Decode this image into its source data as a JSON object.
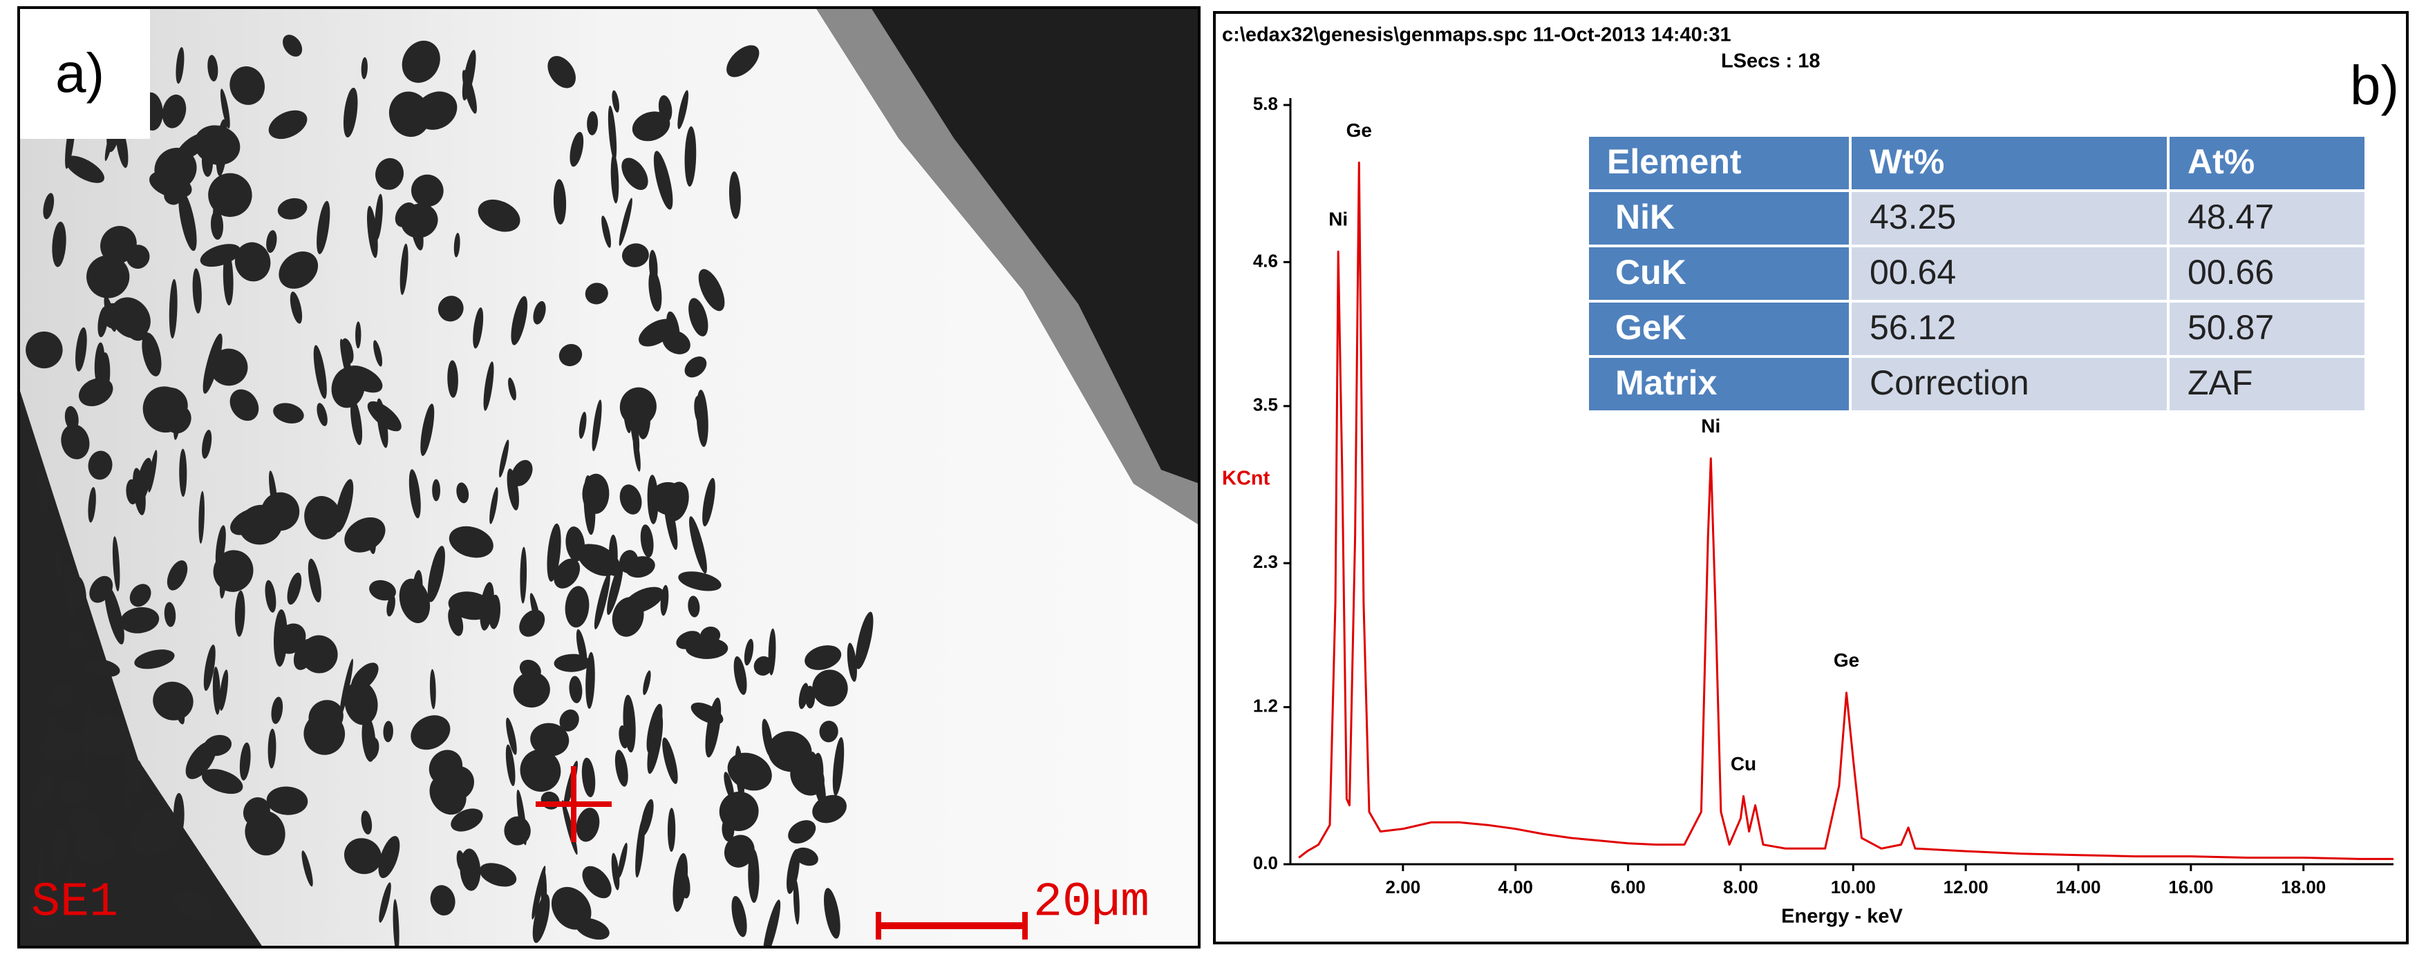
{
  "panel_a": {
    "label": "a)",
    "detector": "SE1",
    "scale_bar": "20µm"
  },
  "chart_data": {
    "type": "line",
    "header": "c:\\edax32\\genesis\\genmaps.spc  11-Oct-2013 14:40:31",
    "subheader": "LSecs : 18",
    "panel_label": "b)",
    "y_label": "KCnt",
    "x_label": "Energy - keV",
    "xlim": [
      0,
      19.6
    ],
    "ylim": [
      0,
      5.8
    ],
    "xticks": [
      {
        "value": 2,
        "label": "2.00"
      },
      {
        "value": 4,
        "label": "4.00"
      },
      {
        "value": 6,
        "label": "6.00"
      },
      {
        "value": 8,
        "label": "8.00"
      },
      {
        "value": 10,
        "label": "10.00"
      },
      {
        "value": 12,
        "label": "12.00"
      },
      {
        "value": 14,
        "label": "14.00"
      },
      {
        "value": 16,
        "label": "16.00"
      },
      {
        "value": 18,
        "label": "18.00"
      }
    ],
    "yticks": [
      {
        "value": 0,
        "label": "0.0"
      },
      1.2,
      2.3,
      3.5,
      4.6,
      5.8
    ],
    "x": [
      0.15,
      0.3,
      0.5,
      0.7,
      0.8,
      0.85,
      0.92,
      1.0,
      1.05,
      1.15,
      1.22,
      1.3,
      1.4,
      1.6,
      2.0,
      2.5,
      3.0,
      3.5,
      4.0,
      4.5,
      5.0,
      5.5,
      6.0,
      6.5,
      7.0,
      7.3,
      7.42,
      7.47,
      7.55,
      7.65,
      7.8,
      8.0,
      8.05,
      8.15,
      8.26,
      8.4,
      8.8,
      9.5,
      9.75,
      9.88,
      10.0,
      10.15,
      10.5,
      10.85,
      10.98,
      11.1,
      12,
      13,
      14,
      15,
      16,
      17,
      18,
      19,
      19.6
    ],
    "series": [
      {
        "name": "Spectrum",
        "color": "#e00000",
        "values": [
          0.05,
          0.1,
          0.15,
          0.3,
          2.0,
          4.68,
          3.0,
          0.5,
          0.45,
          2.5,
          5.36,
          2.0,
          0.4,
          0.25,
          0.27,
          0.32,
          0.32,
          0.3,
          0.27,
          0.23,
          0.2,
          0.18,
          0.16,
          0.15,
          0.15,
          0.4,
          2.5,
          3.1,
          2.0,
          0.4,
          0.15,
          0.35,
          0.52,
          0.25,
          0.45,
          0.15,
          0.12,
          0.12,
          0.6,
          1.31,
          0.8,
          0.2,
          0.12,
          0.15,
          0.28,
          0.12,
          0.1,
          0.08,
          0.07,
          0.06,
          0.06,
          0.05,
          0.05,
          0.04,
          0.04
        ]
      }
    ],
    "peak_labels": [
      {
        "text": "Ni",
        "x": 0.85,
        "y": 4.68
      },
      {
        "text": "Ge",
        "x": 1.22,
        "y": 5.36
      },
      {
        "text": "Ni",
        "x": 7.47,
        "y": 3.1
      },
      {
        "text": "Cu",
        "x": 8.05,
        "y": 0.52
      },
      {
        "text": "Ge",
        "x": 9.88,
        "y": 1.31
      }
    ],
    "table": {
      "header": [
        "Element",
        "Wt%",
        "At%"
      ],
      "rows": [
        [
          "NiK",
          "43.25",
          "48.47"
        ],
        [
          "CuK",
          "00.64",
          "00.66"
        ],
        [
          "GeK",
          "56.12",
          "50.87"
        ],
        [
          "Matrix",
          "Correction",
          "ZAF"
        ]
      ]
    }
  }
}
